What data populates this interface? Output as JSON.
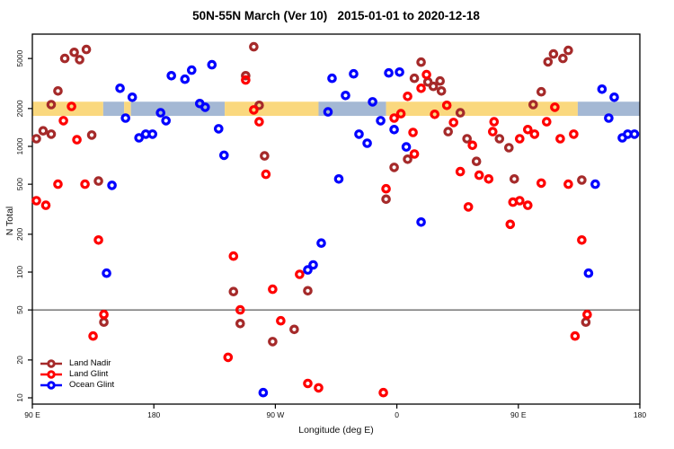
{
  "title": "50N-55N March (Ver 10)   2015-01-01 to 2020-12-18",
  "chart_data": {
    "type": "scatter",
    "title": "50N-55N March (Ver 10)   2015-01-01 to 2020-12-18",
    "xlabel": "Longitude (deg E)",
    "ylabel": "N Total",
    "grid": false,
    "legend_position": "bottom-left",
    "x_axis": {
      "range": [
        90,
        540
      ],
      "note": "longitude axis wraps: 90E -> 180 -> 90W -> 0 -> 90E -> 180",
      "ticks": [
        90,
        180,
        270,
        360,
        450,
        540
      ],
      "tick_labels": [
        "90 E",
        "180",
        "90 W",
        "0",
        "90 E",
        "180"
      ]
    },
    "y_axis": {
      "scale": "log",
      "range": [
        9,
        8000
      ],
      "ticks": [
        10,
        20,
        50,
        100,
        200,
        500,
        1000,
        2000,
        5000
      ]
    },
    "reference_line": {
      "value": 50,
      "color": "#333333"
    },
    "surface_band": {
      "center_value": 2000,
      "colors": {
        "land": "#FAD87E",
        "ocean": "#A4B8D4"
      },
      "segments": [
        {
          "type": "land",
          "from": 90,
          "to": 142.5
        },
        {
          "type": "ocean",
          "from": 142.5,
          "to": 158
        },
        {
          "type": "land",
          "from": 158,
          "to": 163
        },
        {
          "type": "ocean",
          "from": 163,
          "to": 232.5
        },
        {
          "type": "land",
          "from": 232.5,
          "to": 302
        },
        {
          "type": "ocean",
          "from": 302,
          "to": 352
        },
        {
          "type": "land",
          "from": 352,
          "to": 494
        },
        {
          "type": "ocean",
          "from": 494,
          "to": 540
        }
      ]
    },
    "series": [
      {
        "name": "Land Nadir",
        "color": "#A52A2A",
        "points": [
          [
            114,
            5000
          ],
          [
            121,
            5600
          ],
          [
            125,
            4900
          ],
          [
            130,
            5900
          ],
          [
            109,
            2760
          ],
          [
            104,
            2150
          ],
          [
            98,
            1330
          ],
          [
            104,
            1250
          ],
          [
            93,
            1150
          ],
          [
            134,
            1230
          ],
          [
            254,
            6200
          ],
          [
            248,
            3650
          ],
          [
            258,
            2120
          ],
          [
            262,
            840
          ],
          [
            139,
            530
          ],
          [
            378,
            4680
          ],
          [
            373,
            3480
          ],
          [
            383,
            3250
          ],
          [
            387,
            3000
          ],
          [
            392,
            3310
          ],
          [
            393,
            2760
          ],
          [
            407,
            1850
          ],
          [
            398,
            1310
          ],
          [
            412,
            1150
          ],
          [
            368,
            790
          ],
          [
            358,
            680
          ],
          [
            352,
            380
          ],
          [
            419,
            760
          ],
          [
            472,
            4700
          ],
          [
            476,
            5430
          ],
          [
            483,
            5000
          ],
          [
            487,
            5800
          ],
          [
            467,
            2720
          ],
          [
            461,
            2150
          ],
          [
            447,
            550
          ],
          [
            497,
            540
          ],
          [
            143,
            40
          ],
          [
            436,
            1150
          ],
          [
            443,
            975
          ],
          [
            500,
            40
          ],
          [
            239,
            70
          ],
          [
            294,
            71
          ],
          [
            244,
            39
          ],
          [
            284,
            35
          ],
          [
            268,
            28
          ]
        ]
      },
      {
        "name": "Land Glint",
        "color": "#FF0000",
        "points": [
          [
            119,
            2080
          ],
          [
            113,
            1600
          ],
          [
            123,
            1130
          ],
          [
            93,
            370
          ],
          [
            100,
            340
          ],
          [
            109,
            500
          ],
          [
            129,
            500
          ],
          [
            139,
            180
          ],
          [
            135,
            31
          ],
          [
            143,
            46
          ],
          [
            248,
            3370
          ],
          [
            254,
            1950
          ],
          [
            258,
            1570
          ],
          [
            263,
            600
          ],
          [
            239,
            134
          ],
          [
            268,
            73
          ],
          [
            244,
            50
          ],
          [
            274,
            41
          ],
          [
            235,
            21
          ],
          [
            294,
            13
          ],
          [
            302,
            12
          ],
          [
            288,
            96
          ],
          [
            350,
            11
          ],
          [
            368,
            2500
          ],
          [
            363,
            1820
          ],
          [
            358,
            1680
          ],
          [
            378,
            2900
          ],
          [
            382,
            3720
          ],
          [
            397,
            2120
          ],
          [
            388,
            1800
          ],
          [
            402,
            1550
          ],
          [
            372,
            1290
          ],
          [
            416,
            1020
          ],
          [
            373,
            870
          ],
          [
            352,
            460
          ],
          [
            407,
            630
          ],
          [
            421,
            590
          ],
          [
            428,
            550
          ],
          [
            413,
            330
          ],
          [
            467,
            510
          ],
          [
            487,
            500
          ],
          [
            477,
            2050
          ],
          [
            471,
            1570
          ],
          [
            432,
            1570
          ],
          [
            431,
            1310
          ],
          [
            451,
            1150
          ],
          [
            457,
            1360
          ],
          [
            462,
            1250
          ],
          [
            481,
            1150
          ],
          [
            491,
            1250
          ],
          [
            446,
            360
          ],
          [
            451,
            370
          ],
          [
            457,
            340
          ],
          [
            444,
            240
          ],
          [
            497,
            180
          ],
          [
            501,
            46
          ],
          [
            492,
            31
          ]
        ]
      },
      {
        "name": "Ocean Glint",
        "color": "#0000FF",
        "points": [
          [
            155,
            2900
          ],
          [
            164,
            2460
          ],
          [
            159,
            1680
          ],
          [
            169,
            1170
          ],
          [
            174,
            1250
          ],
          [
            179,
            1250
          ],
          [
            185,
            1850
          ],
          [
            189,
            1600
          ],
          [
            193,
            3650
          ],
          [
            203,
            3420
          ],
          [
            208,
            4040
          ],
          [
            223,
            4460
          ],
          [
            312,
            3480
          ],
          [
            214,
            2190
          ],
          [
            218,
            2050
          ],
          [
            309,
            1880
          ],
          [
            228,
            1380
          ],
          [
            232,
            850
          ],
          [
            149,
            490
          ],
          [
            145,
            98
          ],
          [
            317,
            550
          ],
          [
            304,
            170
          ],
          [
            294,
            104
          ],
          [
            298,
            114
          ],
          [
            328,
            3780
          ],
          [
            354,
            3840
          ],
          [
            362,
            3900
          ],
          [
            322,
            2540
          ],
          [
            342,
            2260
          ],
          [
            348,
            1600
          ],
          [
            358,
            1360
          ],
          [
            332,
            1250
          ],
          [
            338,
            1060
          ],
          [
            367,
            990
          ],
          [
            378,
            250
          ],
          [
            512,
            2850
          ],
          [
            521,
            2460
          ],
          [
            517,
            1680
          ],
          [
            527,
            1170
          ],
          [
            531,
            1250
          ],
          [
            536,
            1250
          ],
          [
            507,
            500
          ],
          [
            502,
            98
          ],
          [
            261,
            11
          ]
        ]
      }
    ]
  }
}
